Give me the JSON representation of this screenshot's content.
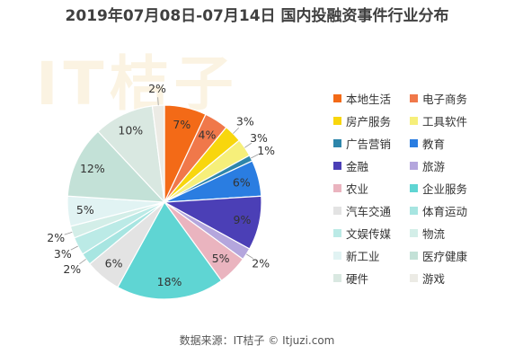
{
  "title": "2019年07月08日-07月14日 国内投融资事件行业分布",
  "source": "数据来源：IT桔子 © Itjuzi.com",
  "watermark": "IT桔子",
  "chart_data": {
    "type": "pie",
    "title": "2019年07月08日-07月14日 国内投融资事件行业分布",
    "legend_position": "right",
    "slices": [
      {
        "label": "本地生活",
        "value": 7,
        "color": "#f36a17"
      },
      {
        "label": "电子商务",
        "value": 4,
        "color": "#f0784a"
      },
      {
        "label": "房产服务",
        "value": 3,
        "color": "#f8d60d"
      },
      {
        "label": "工具软件",
        "value": 3,
        "color": "#f6ef7a"
      },
      {
        "label": "广告营销",
        "value": 1,
        "color": "#2e86ab"
      },
      {
        "label": "教育",
        "value": 6,
        "color": "#2a7de1"
      },
      {
        "label": "金融",
        "value": 9,
        "color": "#4b3fb6"
      },
      {
        "label": "旅游",
        "value": 2,
        "color": "#b4a6dd"
      },
      {
        "label": "农业",
        "value": 5,
        "color": "#eab4bf"
      },
      {
        "label": "企业服务",
        "value": 18,
        "color": "#5fd5d3"
      },
      {
        "label": "汽车交通",
        "value": 6,
        "color": "#e3e3e3"
      },
      {
        "label": "体育运动",
        "value": 2,
        "color": "#a7e5e1"
      },
      {
        "label": "文娱传媒",
        "value": 3,
        "color": "#bbeae6"
      },
      {
        "label": "物流",
        "value": 2,
        "color": "#d3eee8"
      },
      {
        "label": "新工业",
        "value": 5,
        "color": "#e1f3f3"
      },
      {
        "label": "医疗健康",
        "value": 12,
        "color": "#c3e1d7"
      },
      {
        "label": "硬件",
        "value": 10,
        "color": "#d9e8e1"
      },
      {
        "label": "游戏",
        "value": 2,
        "color": "#ecebe5"
      }
    ],
    "unit": "%"
  }
}
